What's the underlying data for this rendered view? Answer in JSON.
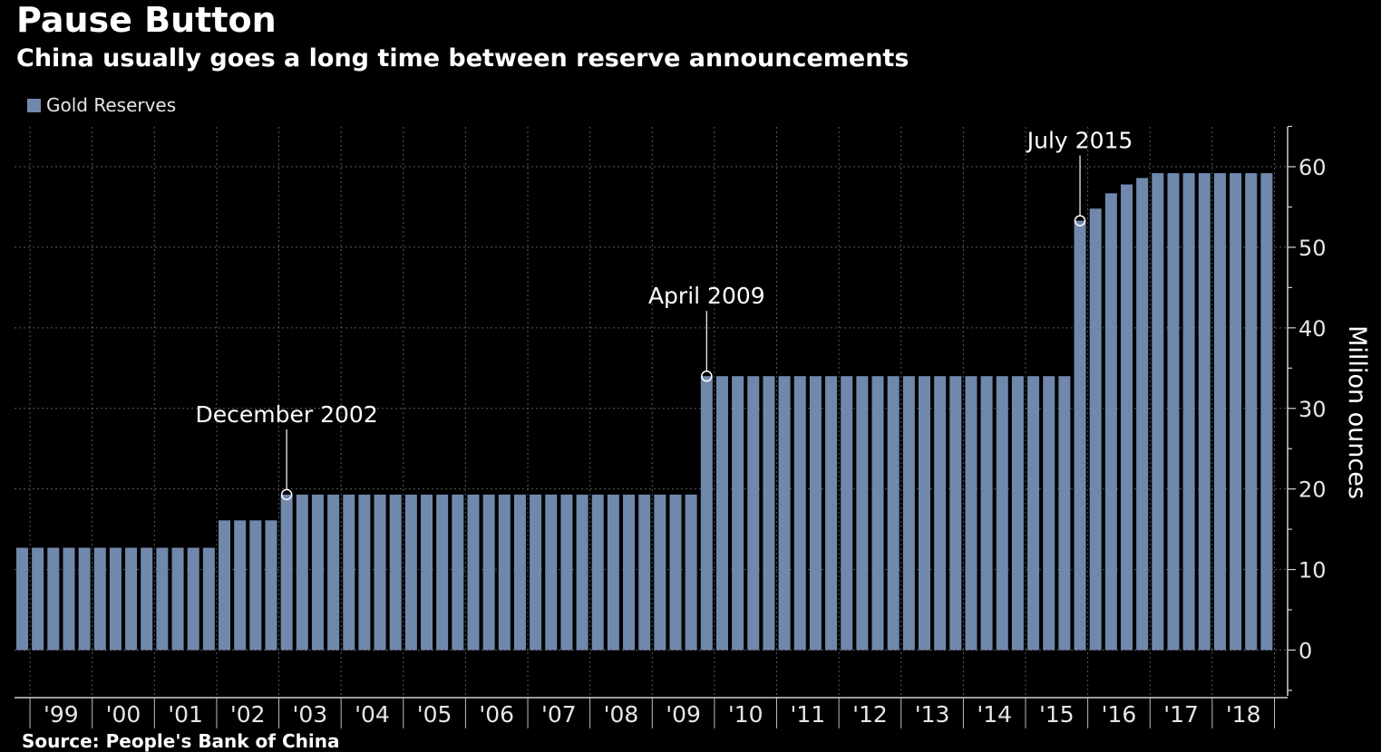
{
  "title": "Pause Button",
  "subtitle": "China usually goes a long time between reserve announcements",
  "source": "Source: People's Bank of China",
  "colors": {
    "bar": "#7188ad",
    "background": "#000000",
    "grid": "#5a5a5a",
    "text": "#ffffff"
  },
  "chart_data": {
    "type": "bar",
    "title": "Pause Button",
    "subtitle": "China usually goes a long time between reserve announcements",
    "ylabel": "Million ounces",
    "ylim": [
      -5,
      65
    ],
    "yticks": [
      0,
      10,
      20,
      30,
      40,
      50,
      60
    ],
    "grid": true,
    "legend_position": "top-left",
    "x_tick_labels": [
      "'99",
      "'00",
      "'01",
      "'02",
      "'03",
      "'04",
      "'05",
      "'06",
      "'07",
      "'08",
      "'09",
      "'10",
      "'11",
      "'12",
      "'13",
      "'14",
      "'15",
      "'16",
      "'17",
      "'18"
    ],
    "series": [
      {
        "name": "Gold Reserves",
        "frequency": "quarterly",
        "start": "1998 Q4",
        "values": [
          12.7,
          12.7,
          12.7,
          12.7,
          12.7,
          12.7,
          12.7,
          12.7,
          12.7,
          12.7,
          12.7,
          12.7,
          12.7,
          16.1,
          16.1,
          16.1,
          16.1,
          19.3,
          19.3,
          19.3,
          19.3,
          19.3,
          19.3,
          19.3,
          19.3,
          19.3,
          19.3,
          19.3,
          19.3,
          19.3,
          19.3,
          19.3,
          19.3,
          19.3,
          19.3,
          19.3,
          19.3,
          19.3,
          19.3,
          19.3,
          19.3,
          19.3,
          19.3,
          19.3,
          34.0,
          34.0,
          34.0,
          34.0,
          34.0,
          34.0,
          34.0,
          34.0,
          34.0,
          34.0,
          34.0,
          34.0,
          34.0,
          34.0,
          34.0,
          34.0,
          34.0,
          34.0,
          34.0,
          34.0,
          34.0,
          34.0,
          34.0,
          34.0,
          53.3,
          54.8,
          56.7,
          57.8,
          58.6,
          59.2,
          59.2,
          59.2,
          59.2,
          59.2,
          59.2,
          59.2,
          59.2
        ]
      }
    ],
    "annotations": [
      {
        "label": "December 2002",
        "index": 17
      },
      {
        "label": "April 2009",
        "index": 44
      },
      {
        "label": "July 2015",
        "index": 68
      }
    ]
  }
}
